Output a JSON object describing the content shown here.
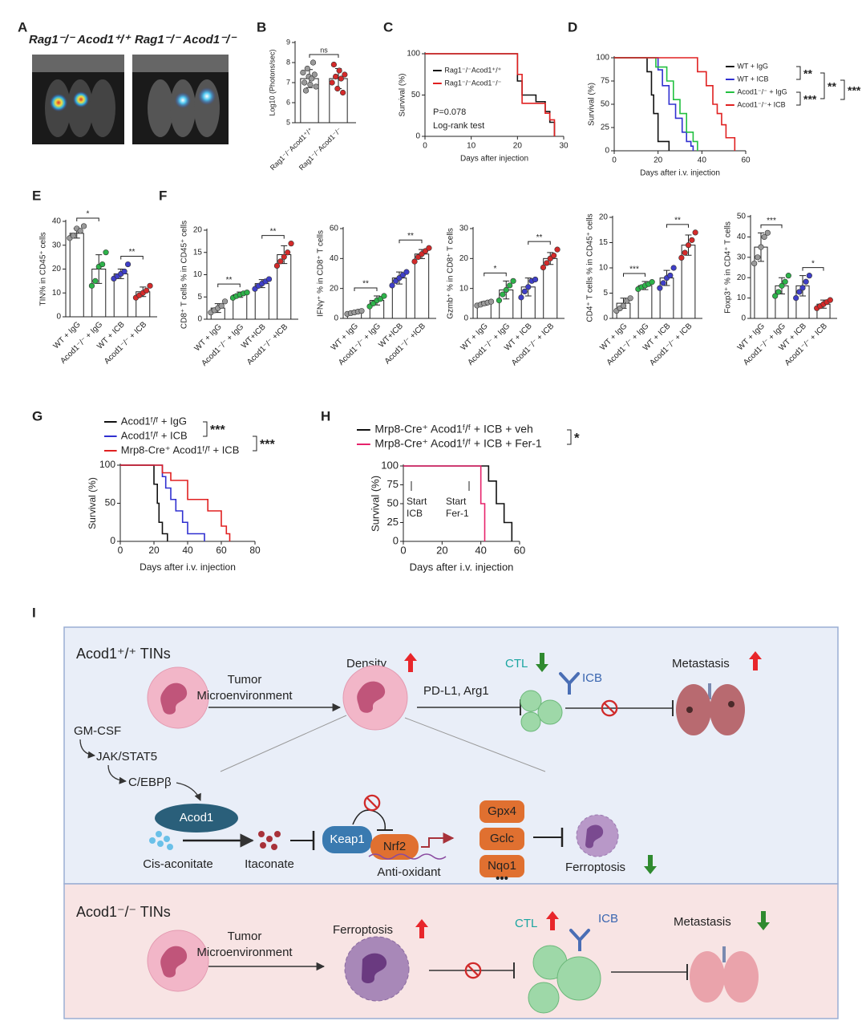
{
  "a": {
    "label": "A",
    "titles": [
      "Rag1⁻/⁻ Acod1⁺/⁺",
      "Rag1⁻/⁻ Acod1⁻/⁻"
    ]
  },
  "b": {
    "label": "B",
    "type": "bar",
    "ylabel": "Log10 (Photons/sec)",
    "ylim": [
      5,
      9
    ],
    "yticks": [
      5,
      6,
      7,
      8,
      9
    ],
    "categories": [
      "Rag1⁻/⁻Acod1⁺/⁺",
      "Rag1⁻/⁻Acod1⁻/⁻"
    ],
    "colors": [
      "#9a9a9a",
      "#d42a2a"
    ],
    "values": [
      7.2,
      7.2
    ],
    "errors": [
      0.45,
      0.5
    ],
    "points": [
      [
        7.5,
        7.0,
        6.6,
        7.7,
        7.3,
        6.9,
        7.2,
        8.0,
        7.4,
        6.8
      ],
      [
        7.0,
        7.9,
        7.3,
        6.7,
        7.6,
        7.2,
        6.5,
        7.4
      ]
    ],
    "sig": [
      "ns"
    ]
  },
  "c": {
    "label": "C",
    "type": "line",
    "ylabel": "Survival (%)",
    "xlabel": "Days after injection",
    "xlim": [
      0,
      30
    ],
    "xticks": [
      0,
      10,
      20,
      30
    ],
    "ylim": [
      0,
      100
    ],
    "yticks": [
      0,
      50,
      100
    ],
    "series": [
      {
        "name": "Rag1⁻/⁻Acod1⁺/⁺",
        "color": "#111111",
        "x": [
          0,
          20,
          20,
          21,
          21,
          24,
          24,
          26,
          26,
          27,
          27,
          28,
          28
        ],
        "values": [
          100,
          100,
          67,
          67,
          50,
          50,
          42,
          42,
          30,
          30,
          17,
          17,
          0
        ]
      },
      {
        "name": "Rag1⁻/⁻Acod1⁻/⁻",
        "color": "#e02020",
        "x": [
          0,
          20,
          20,
          21,
          21,
          26,
          26,
          27,
          27,
          28,
          28
        ],
        "values": [
          100,
          100,
          75,
          75,
          40,
          40,
          28,
          28,
          20,
          20,
          0
        ]
      }
    ],
    "annotations": [
      "P=0.078",
      "Log-rank test"
    ]
  },
  "d": {
    "label": "D",
    "type": "line",
    "ylabel": "Survival (%)",
    "xlabel": "Days after i.v. injection",
    "xlim": [
      0,
      60
    ],
    "xticks": [
      0,
      20,
      40,
      60
    ],
    "ylim": [
      0,
      100
    ],
    "yticks": [
      0,
      25,
      50,
      75,
      100
    ],
    "series": [
      {
        "name": "WT + IgG",
        "color": "#111111",
        "x": [
          0,
          15,
          15,
          17,
          17,
          18,
          18,
          20,
          20,
          25,
          25
        ],
        "values": [
          100,
          100,
          85,
          85,
          60,
          60,
          40,
          40,
          10,
          10,
          0
        ]
      },
      {
        "name": "WT + ICB",
        "color": "#3030d0",
        "x": [
          0,
          20,
          20,
          22,
          22,
          25,
          25,
          28,
          28,
          31,
          31,
          33,
          33,
          35,
          35,
          36,
          36
        ],
        "values": [
          100,
          100,
          87,
          87,
          70,
          70,
          50,
          50,
          35,
          35,
          20,
          20,
          10,
          10,
          5,
          5,
          0
        ]
      },
      {
        "name": "Acod1⁻/⁻ + IgG",
        "color": "#22c040",
        "x": [
          0,
          19,
          19,
          24,
          24,
          27,
          27,
          30,
          30,
          33,
          33,
          36,
          36,
          38,
          38
        ],
        "values": [
          100,
          100,
          90,
          90,
          75,
          75,
          55,
          55,
          40,
          40,
          20,
          20,
          10,
          10,
          0
        ]
      },
      {
        "name": "Acod1⁻/⁻+ ICB",
        "color": "#e02020",
        "x": [
          0,
          38,
          38,
          42,
          42,
          45,
          45,
          47,
          47,
          49,
          49,
          51,
          51,
          55,
          55
        ],
        "values": [
          100,
          100,
          85,
          85,
          70,
          70,
          50,
          50,
          40,
          40,
          28,
          28,
          14,
          14,
          0
        ]
      }
    ],
    "sig": [
      "**",
      "**",
      "***",
      "***"
    ]
  },
  "e": {
    "label": "E",
    "type": "bar",
    "ylabel": "TIN% in CD45⁺ cells",
    "ylim": [
      0,
      40
    ],
    "yticks": [
      0,
      10,
      20,
      30,
      40
    ],
    "categories": [
      "WT + IgG",
      "Acod1⁻/⁻ + IgG",
      "WT + ICB",
      "Acod1⁻/⁻ + ICB"
    ],
    "colors": [
      "#9a9a9a",
      "#2db34a",
      "#3f3fc8",
      "#d42a2a"
    ],
    "values": [
      35,
      20,
      18,
      10.5
    ],
    "errors": [
      2,
      6,
      2,
      2
    ],
    "points": [
      [
        33,
        34,
        37,
        36,
        38
      ],
      [
        13,
        15,
        21,
        22,
        27
      ],
      [
        16,
        17,
        18,
        19,
        22
      ],
      [
        8,
        9,
        10,
        11,
        13
      ]
    ],
    "sig": [
      "*",
      "**"
    ]
  },
  "f": {
    "label": "F",
    "charts": [
      {
        "type": "bar",
        "ylabel": "CD8⁺ T cells % in CD45⁺ cells",
        "ylim": [
          0,
          20
        ],
        "yticks": [
          0,
          5,
          10,
          15,
          20
        ],
        "categories": [
          "WT + IgG",
          "Acod1⁻/⁻ + IgG",
          "WT+ICB",
          "Acod1⁻/⁻ +ICB"
        ],
        "colors": [
          "#9a9a9a",
          "#2db34a",
          "#3f3fc8",
          "#d42a2a"
        ],
        "values": [
          2.5,
          5.5,
          8,
          14.5
        ],
        "errors": [
          1,
          0.6,
          0.9,
          2
        ],
        "points": [
          [
            1.5,
            2,
            2.5,
            3,
            4
          ],
          [
            4.8,
            5.2,
            5.5,
            5.8,
            6
          ],
          [
            6.8,
            7.5,
            8,
            8.5,
            9
          ],
          [
            12,
            13,
            14,
            15,
            17
          ]
        ],
        "sig": [
          "**",
          "**"
        ]
      },
      {
        "type": "bar",
        "ylabel": "IFNγ⁺ % in CD8⁺ T cells",
        "ylim": [
          0,
          60
        ],
        "yticks": [
          0,
          20,
          40,
          60
        ],
        "categories": [
          "WT + IgG",
          "Acod1⁻/⁻ + IgG",
          "WT+ICB",
          "Acod1⁻/⁻ +ICB"
        ],
        "colors": [
          "#9a9a9a",
          "#2db34a",
          "#3f3fc8",
          "#d42a2a"
        ],
        "values": [
          4,
          12,
          27,
          43
        ],
        "errors": [
          1,
          3,
          4,
          3
        ],
        "points": [
          [
            3,
            3.5,
            4,
            4.5,
            5
          ],
          [
            8,
            10,
            12,
            13,
            15
          ],
          [
            22,
            25,
            27,
            29,
            31
          ],
          [
            38,
            41,
            43,
            45,
            47
          ]
        ],
        "sig": [
          "**",
          "**"
        ]
      },
      {
        "type": "bar",
        "ylabel": "Gzmb⁺ % in CD8⁺ T cells",
        "ylim": [
          0,
          30
        ],
        "yticks": [
          0,
          10,
          20,
          30
        ],
        "categories": [
          "WT + IgG",
          "Acod1⁻/⁻ + IgG",
          "WT + ICB",
          "Acod1⁻/⁻ + ICB"
        ],
        "colors": [
          "#9a9a9a",
          "#2db34a",
          "#3f3fc8",
          "#d42a2a"
        ],
        "values": [
          5,
          9.5,
          10.5,
          20
        ],
        "errors": [
          0.6,
          3,
          3,
          2
        ],
        "points": [
          [
            4.3,
            4.6,
            5,
            5.3,
            5.6
          ],
          [
            6,
            8,
            9.5,
            11,
            12.5
          ],
          [
            7,
            9,
            10.5,
            12.5,
            13
          ],
          [
            17,
            18.5,
            20,
            21,
            23
          ]
        ],
        "sig": [
          "*",
          "**"
        ]
      },
      {
        "type": "bar",
        "ylabel": "CD4⁺ T cells % in CD45⁺ cells",
        "ylim": [
          0,
          20
        ],
        "yticks": [
          0,
          5,
          10,
          15,
          20
        ],
        "categories": [
          "WT + IgG",
          "Acod1⁻/⁻ + IgG",
          "WT + ICB",
          "Acod1⁻/⁻ + ICB"
        ],
        "colors": [
          "#9a9a9a",
          "#2db34a",
          "#3f3fc8",
          "#d42a2a"
        ],
        "values": [
          3,
          6.5,
          8,
          14.5
        ],
        "errors": [
          1,
          0.8,
          1.5,
          2
        ],
        "points": [
          [
            1.5,
            2,
            2.5,
            3.5,
            4
          ],
          [
            5.8,
            6.2,
            6.5,
            6.8,
            7.2
          ],
          [
            6,
            7,
            8,
            8.5,
            10
          ],
          [
            12,
            13,
            14.5,
            15.5,
            17
          ]
        ],
        "sig": [
          "***",
          "**"
        ]
      },
      {
        "type": "bar",
        "ylabel": "Foxp3⁺ % in CD4⁺ T cells",
        "ylim": [
          0,
          50
        ],
        "yticks": [
          0,
          10,
          20,
          30,
          40,
          50
        ],
        "categories": [
          "WT + IgG",
          "Acod1⁻/⁻ + IgG",
          "WT + ICB",
          "Acod1⁻/⁻ + ICB"
        ],
        "colors": [
          "#9a9a9a",
          "#2db34a",
          "#3f3fc8",
          "#d42a2a"
        ],
        "values": [
          35,
          16,
          16,
          7
        ],
        "errors": [
          7,
          4,
          5,
          2
        ],
        "points": [
          [
            27,
            30,
            35,
            40,
            42
          ],
          [
            11,
            13,
            16,
            18,
            21
          ],
          [
            10,
            13,
            15,
            18,
            21
          ],
          [
            5,
            6,
            7,
            8,
            9
          ]
        ],
        "sig": [
          "***",
          "*"
        ]
      }
    ]
  },
  "g": {
    "label": "G",
    "type": "line",
    "ylabel": "Survival (%)",
    "xlabel": "Days after i.v. injection",
    "xlim": [
      0,
      80
    ],
    "xticks": [
      0,
      20,
      40,
      60,
      80
    ],
    "ylim": [
      0,
      100
    ],
    "yticks": [
      0,
      50,
      100
    ],
    "series": [
      {
        "name": "Acod1ᶠ/ᶠ + IgG",
        "color": "#111111",
        "x": [
          0,
          20,
          20,
          22,
          22,
          23,
          23,
          25,
          25,
          28,
          28
        ],
        "values": [
          100,
          100,
          75,
          75,
          50,
          50,
          25,
          25,
          10,
          10,
          0
        ]
      },
      {
        "name": "Acod1ᶠ/ᶠ + ICB",
        "color": "#3030d0",
        "x": [
          0,
          25,
          25,
          27,
          27,
          30,
          30,
          33,
          33,
          37,
          37,
          40,
          40,
          45,
          45,
          50,
          50
        ],
        "values": [
          100,
          100,
          85,
          85,
          70,
          70,
          55,
          55,
          40,
          40,
          25,
          25,
          10,
          10,
          10,
          10,
          0
        ]
      },
      {
        "name": "Mrp8-Cre⁺ Acod1ᶠ/ᶠ + ICB",
        "color": "#e02020",
        "x": [
          0,
          25,
          25,
          30,
          30,
          40,
          40,
          52,
          52,
          60,
          60,
          63,
          63,
          65,
          65
        ],
        "values": [
          100,
          100,
          90,
          90,
          80,
          80,
          55,
          55,
          40,
          40,
          20,
          20,
          10,
          10,
          0
        ]
      }
    ],
    "sig": [
      "***",
      "***"
    ]
  },
  "h": {
    "label": "H",
    "type": "line",
    "ylabel": "Survival (%)",
    "xlabel": "Days after i.v. injection",
    "xlim": [
      0,
      60
    ],
    "xticks": [
      0,
      20,
      40,
      60
    ],
    "ylim": [
      0,
      100
    ],
    "yticks": [
      0,
      25,
      50,
      75,
      100
    ],
    "series": [
      {
        "name": "Mrp8-Cre⁺ Acod1ᶠ/ᶠ + ICB + veh",
        "color": "#111111",
        "x": [
          0,
          44,
          44,
          48,
          48,
          52,
          52,
          56,
          56
        ],
        "values": [
          100,
          100,
          80,
          80,
          50,
          50,
          25,
          25,
          0
        ]
      },
      {
        "name": "Mrp8-Cre⁺ Acod1ᶠ/ᶠ + ICB + Fer-1",
        "color": "#e6236b",
        "x": [
          0,
          40,
          40,
          41,
          41,
          42,
          42
        ],
        "values": [
          100,
          100,
          50,
          50,
          50,
          50,
          0
        ]
      }
    ],
    "annotations": [
      [
        "Start",
        "ICB"
      ],
      [
        "Start",
        "Fer-1"
      ]
    ],
    "sig": [
      "*"
    ]
  },
  "i": {
    "label": "I",
    "top": {
      "title": "Acod1⁺/⁺ TINs",
      "tme": [
        "Tumor",
        "Microenvironment"
      ],
      "density": "Density",
      "pdl1": "PD-L1, Arg1",
      "ctl": "CTL",
      "icb": "ICB",
      "metastasis": "Metastasis",
      "gmcsf": "GM-CSF",
      "jak": "JAK/STAT5",
      "cebp": "C/EBPβ",
      "acod1": "Acod1",
      "cis": "Cis-aconitate",
      "itaconate": "Itaconate",
      "keap1": "Keap1",
      "nrf2": "Nrf2",
      "antiox": "Anti-oxidant",
      "genes": [
        "Gpx4",
        "Gclc",
        "Nqo1"
      ],
      "more": "•••",
      "ferroptosis": "Ferroptosis"
    },
    "bottom": {
      "title": "Acod1⁻/⁻ TINs",
      "tme": [
        "Tumor",
        "Microenvironment"
      ],
      "ferroptosis": "Ferroptosis",
      "ctl": "CTL",
      "icb": "ICB",
      "metastasis": "Metastasis"
    }
  }
}
